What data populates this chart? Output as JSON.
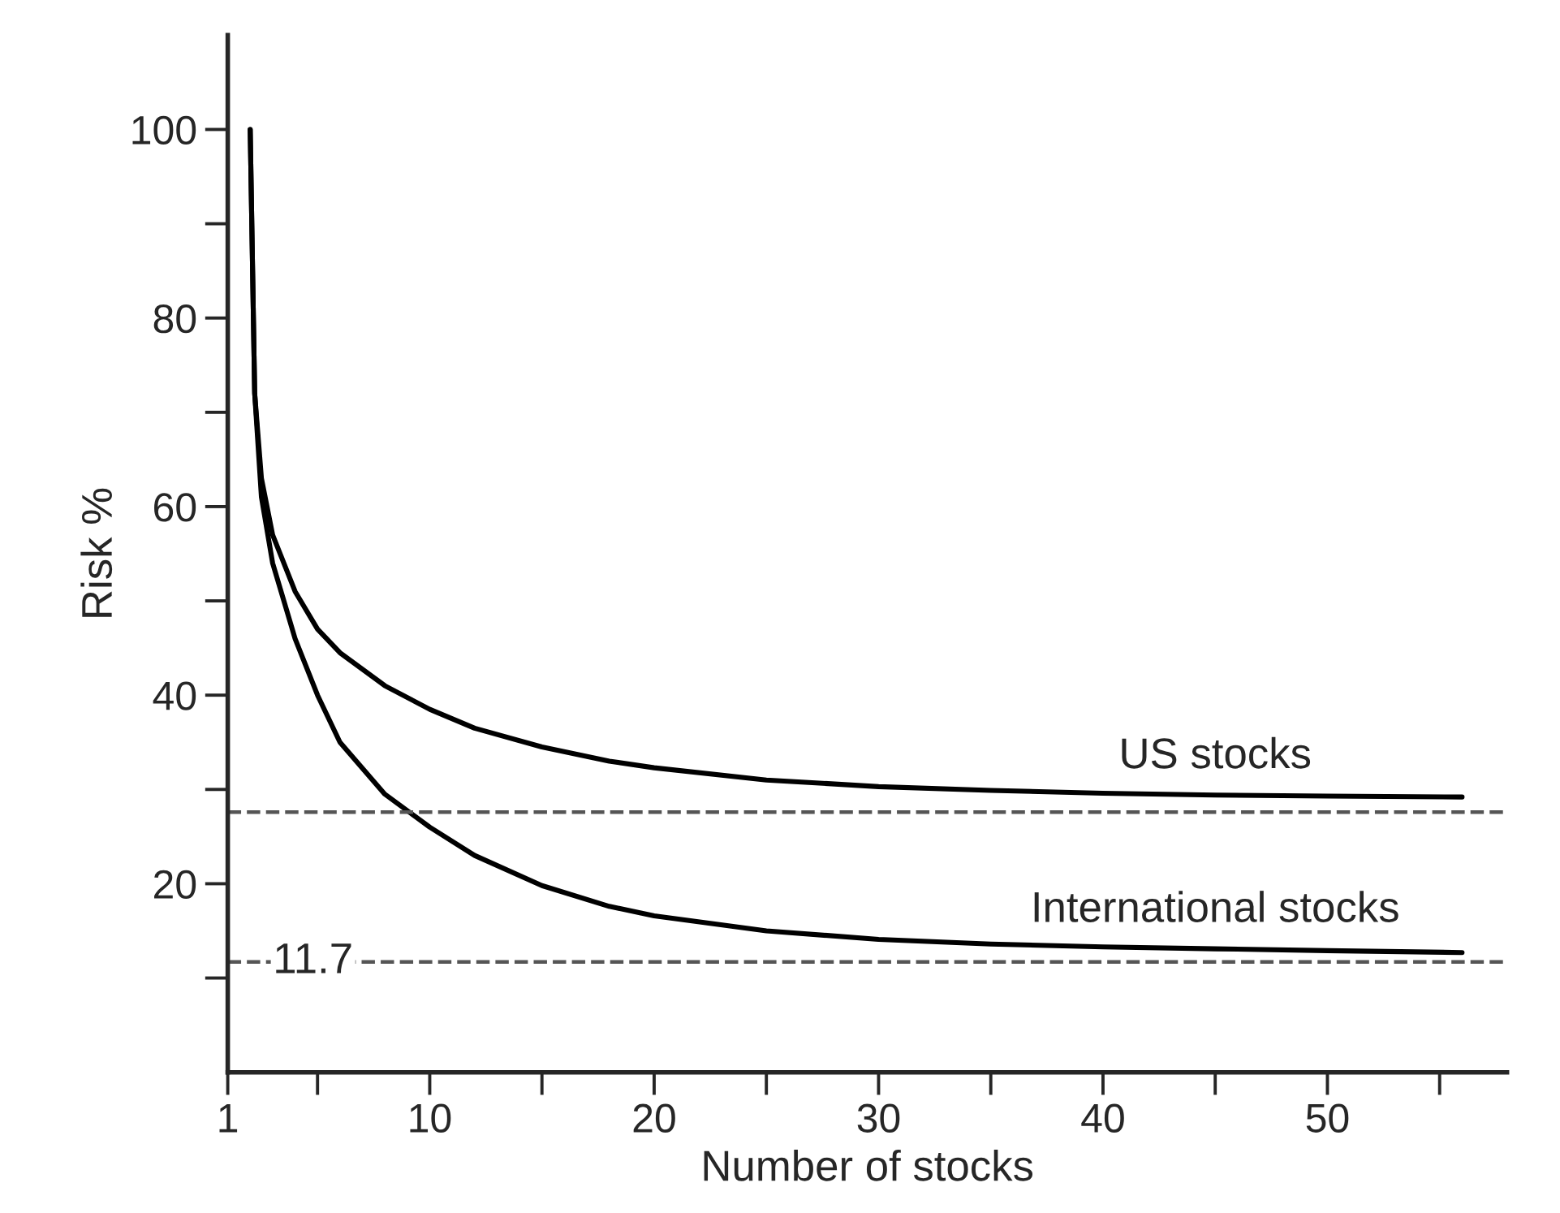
{
  "chart_data": {
    "type": "line",
    "xlabel": "Number of stocks",
    "ylabel": "Risk %",
    "xlim": [
      1,
      58
    ],
    "ylim": [
      0,
      110
    ],
    "xticks": [
      1,
      {
        "value": 5,
        "label": null
      },
      10,
      {
        "value": 15,
        "label": null
      },
      20,
      {
        "value": 25,
        "label": null
      },
      30,
      {
        "value": 35,
        "label": null
      },
      40,
      {
        "value": 45,
        "label": null
      },
      50,
      {
        "value": 55,
        "label": null
      }
    ],
    "yticks": [
      {
        "value": 10,
        "label": null
      },
      20,
      {
        "value": 30,
        "label": null
      },
      40,
      {
        "value": 50,
        "label": null
      },
      60,
      {
        "value": 70,
        "label": null
      },
      80,
      {
        "value": 90,
        "label": null
      },
      100
    ],
    "series": [
      {
        "color": "#000000",
        "x": [
          2,
          2.2,
          2.5,
          3,
          4,
          5,
          6,
          8,
          10,
          12,
          15,
          18,
          20,
          25,
          30,
          35,
          40,
          45,
          50,
          56
        ],
        "values": [
          100,
          72,
          63,
          57,
          51,
          47,
          44.5,
          41,
          38.5,
          36.5,
          34.5,
          33,
          32.3,
          31,
          30.3,
          29.9,
          29.6,
          29.4,
          29.3,
          29.2
        ]
      },
      {
        "color": "#000000",
        "x": [
          2,
          2.2,
          2.5,
          3,
          4,
          5,
          6,
          8,
          10,
          12,
          15,
          18,
          20,
          25,
          30,
          35,
          40,
          45,
          50,
          56
        ],
        "values": [
          100,
          72,
          61,
          54,
          46,
          40,
          35,
          29.5,
          26,
          23,
          19.8,
          17.6,
          16.6,
          15,
          14.1,
          13.6,
          13.3,
          13.1,
          12.9,
          12.7
        ]
      }
    ],
    "ref_lines": [
      {
        "axis": "y",
        "value": 27.6,
        "color": "#555555",
        "line_style": "dashed"
      },
      {
        "axis": "y",
        "value": 11.7,
        "label": "11.7",
        "color": "#555555",
        "line_style": "dashed"
      }
    ],
    "annotations": [
      {
        "text": "US stocks",
        "x": 45,
        "y": 29.4
      },
      {
        "text": "International stocks",
        "x": 45,
        "y": 13.1
      }
    ],
    "line_style": "solid",
    "marker": "none",
    "grid": false,
    "legend": false
  }
}
